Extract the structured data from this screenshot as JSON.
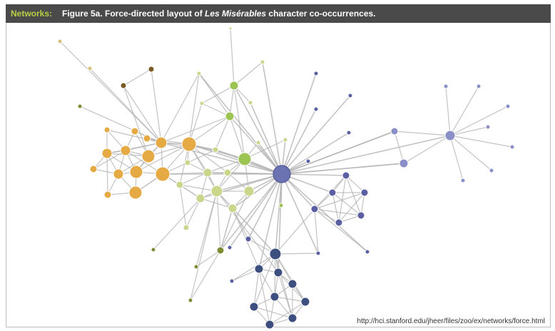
{
  "header": {
    "tag": "Networks:",
    "title_prefix": "Figure 5a. Force-directed layout of ",
    "title_italic": "Les Misérables",
    "title_suffix": " character co-occurrences."
  },
  "source_url": "http://hci.stanford.edu/jheer/files/zoo/ex/networks/force.html",
  "colors": {
    "title_bar": "#4a4a4a",
    "tag": "#b5d043",
    "edge": "#b4b4b4",
    "node_stroke": "#ffffff",
    "groups": {
      "orange": "#e5aa44",
      "light_green": "#c9d78c",
      "green": "#9cc453",
      "olive": "#7b8c32",
      "brown": "#7a5a22",
      "tan": "#d9c07a",
      "blue": "#6b73b3",
      "lavender": "#8b8fc8",
      "navy": "#3d4f7e",
      "violet": "#5a5fa3"
    }
  }
}
